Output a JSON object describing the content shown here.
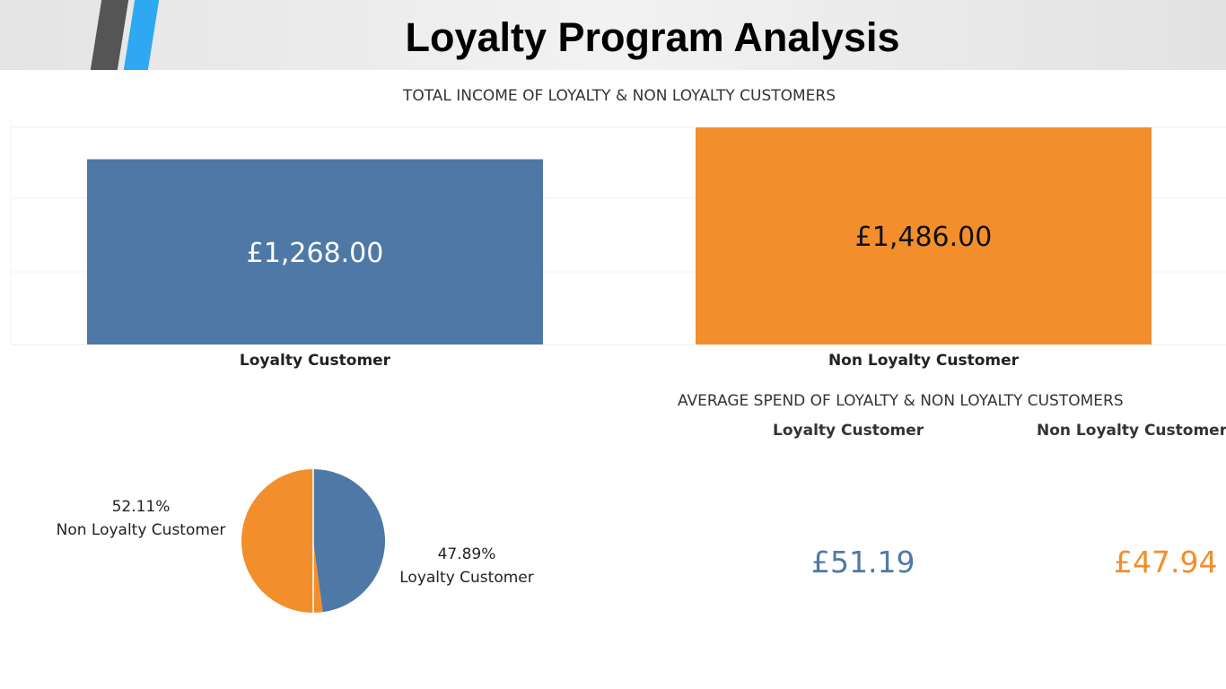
{
  "page": {
    "title": "Loyalty Program Analysis"
  },
  "colors": {
    "loyalty": "#4e79a7",
    "non_loyalty": "#f28e2b"
  },
  "chart_data": [
    {
      "type": "bar",
      "title": "TOTAL INCOME OF LOYALTY & NON LOYALTY CUSTOMERS",
      "categories": [
        "Loyalty Customer",
        "Non Loyalty Customer"
      ],
      "values": [
        1268,
        1486
      ],
      "value_labels": [
        "£1,268.00",
        "£1,486.00"
      ],
      "colors": [
        "#4e79a7",
        "#f28e2b"
      ],
      "ylim": [
        0,
        1486
      ],
      "grid": true
    },
    {
      "type": "pie",
      "categories": [
        "Non Loyalty Customer",
        "Loyalty Customer"
      ],
      "values": [
        52.11,
        47.89
      ],
      "value_labels": [
        "52.11%",
        "47.89%"
      ],
      "colors": [
        "#f28e2b",
        "#4e79a7"
      ]
    },
    {
      "type": "table",
      "title": "AVERAGE SPEND OF LOYALTY & NON LOYALTY CUSTOMERS",
      "categories": [
        "Loyalty Customer",
        "Non Loyalty Customer"
      ],
      "values": [
        51.19,
        47.94
      ],
      "value_labels": [
        "£51.19",
        "£47.94"
      ],
      "colors": [
        "#4e79a7",
        "#f28e2b"
      ]
    }
  ]
}
